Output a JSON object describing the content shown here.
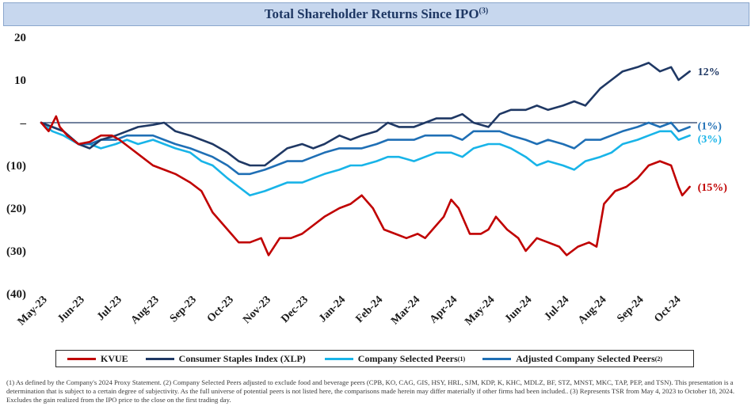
{
  "title": {
    "text": "Total Shareholder Returns Since IPO",
    "sup": "(3)"
  },
  "legend": [
    {
      "label": "KVUE",
      "sup": "",
      "color": "#c00000"
    },
    {
      "label": "Consumer Staples Index (XLP)",
      "sup": "",
      "color": "#1f3864"
    },
    {
      "label": "Company Selected Peers",
      "sup": "(1)",
      "color": "#18b4e8"
    },
    {
      "label": "Adjusted Company Selected Peers",
      "sup": "(2)",
      "color": "#1f6fb5"
    }
  ],
  "footnotes": [
    "(1) As defined by the Company's 2024 Proxy Statement. (2) Company Selected Peers adjusted to exclude food and beverage peers (CPB, KO, CAG, GIS, HSY, HRL, SJM, KDP, K, KHC, MDLZ, BF, STZ, MNST, MKC, TAP, PEP, and TSN). This presentation is a determination that is subject to a certain degree of subjectivity. As the full universe of potential peers is not listed here, the comparisons made herein may differ materially if other firms had been included.. (3) Represents TSR from May 4, 2023 to October 18, 2024. Excludes the gain realized from the IPO price to the close on the first trading day."
  ],
  "chart_data": {
    "type": "line",
    "title": "Total Shareholder Returns Since IPO",
    "xlabel": "",
    "ylabel": "",
    "ylim": [
      -40,
      20
    ],
    "xlim": [
      0,
      17.6
    ],
    "yticks": [
      20,
      10,
      0,
      -10,
      -20,
      -30,
      -40
    ],
    "ytick_labels": [
      "20",
      "10",
      "–",
      "(10)",
      "(20)",
      "(30)",
      "(40)"
    ],
    "zero_line": true,
    "categories": [
      "May-23",
      "Jun-23",
      "Jul-23",
      "Aug-23",
      "Sep-23",
      "Oct-23",
      "Nov-23",
      "Dec-23",
      "Jan-24",
      "Feb-24",
      "Mar-24",
      "Apr-24",
      "May-24",
      "Jun-24",
      "Jul-24",
      "Aug-24",
      "Sep-24",
      "Oct-24"
    ],
    "series": [
      {
        "name": "KVUE",
        "color": "#c00000",
        "end_label": "(15%)",
        "points": [
          [
            0,
            0
          ],
          [
            0.2,
            -2
          ],
          [
            0.4,
            1.5
          ],
          [
            0.5,
            -1
          ],
          [
            0.7,
            -3
          ],
          [
            1,
            -5
          ],
          [
            1.3,
            -4.5
          ],
          [
            1.6,
            -3
          ],
          [
            1.9,
            -3
          ],
          [
            2.1,
            -4
          ],
          [
            2.4,
            -6
          ],
          [
            2.7,
            -8
          ],
          [
            3,
            -10
          ],
          [
            3.3,
            -11
          ],
          [
            3.6,
            -12
          ],
          [
            4,
            -14
          ],
          [
            4.3,
            -16
          ],
          [
            4.6,
            -21
          ],
          [
            5,
            -25
          ],
          [
            5.3,
            -28
          ],
          [
            5.6,
            -28
          ],
          [
            5.9,
            -27
          ],
          [
            6.1,
            -31
          ],
          [
            6.4,
            -27
          ],
          [
            6.7,
            -27
          ],
          [
            7,
            -26
          ],
          [
            7.3,
            -24
          ],
          [
            7.6,
            -22
          ],
          [
            8,
            -20
          ],
          [
            8.3,
            -19
          ],
          [
            8.6,
            -17
          ],
          [
            8.9,
            -20
          ],
          [
            9.2,
            -25
          ],
          [
            9.5,
            -26
          ],
          [
            9.8,
            -27
          ],
          [
            10.1,
            -26
          ],
          [
            10.3,
            -27
          ],
          [
            10.5,
            -25
          ],
          [
            10.8,
            -22
          ],
          [
            11,
            -18
          ],
          [
            11.2,
            -20
          ],
          [
            11.5,
            -26
          ],
          [
            11.8,
            -26
          ],
          [
            12,
            -25
          ],
          [
            12.2,
            -22
          ],
          [
            12.5,
            -25
          ],
          [
            12.8,
            -27
          ],
          [
            13,
            -30
          ],
          [
            13.3,
            -27
          ],
          [
            13.6,
            -28
          ],
          [
            13.9,
            -29
          ],
          [
            14.1,
            -31
          ],
          [
            14.4,
            -29
          ],
          [
            14.7,
            -28
          ],
          [
            14.9,
            -29
          ],
          [
            15.1,
            -19
          ],
          [
            15.4,
            -16
          ],
          [
            15.7,
            -15
          ],
          [
            16,
            -13
          ],
          [
            16.3,
            -10
          ],
          [
            16.6,
            -9
          ],
          [
            16.9,
            -10
          ],
          [
            17.1,
            -15
          ],
          [
            17.2,
            -17
          ],
          [
            17.4,
            -15
          ]
        ]
      },
      {
        "name": "Consumer Staples Index (XLP)",
        "color": "#1f3864",
        "end_label": "12%",
        "points": [
          [
            0,
            0
          ],
          [
            0.3,
            -1
          ],
          [
            0.6,
            -2
          ],
          [
            1,
            -5
          ],
          [
            1.3,
            -6
          ],
          [
            1.6,
            -4
          ],
          [
            2,
            -3
          ],
          [
            2.3,
            -2
          ],
          [
            2.6,
            -1
          ],
          [
            3,
            -0.5
          ],
          [
            3.3,
            0
          ],
          [
            3.6,
            -2
          ],
          [
            4,
            -3
          ],
          [
            4.3,
            -4
          ],
          [
            4.6,
            -5
          ],
          [
            5,
            -7
          ],
          [
            5.3,
            -9
          ],
          [
            5.6,
            -10
          ],
          [
            6,
            -10
          ],
          [
            6.3,
            -8
          ],
          [
            6.6,
            -6
          ],
          [
            7,
            -5
          ],
          [
            7.3,
            -6
          ],
          [
            7.6,
            -5
          ],
          [
            8,
            -3
          ],
          [
            8.3,
            -4
          ],
          [
            8.6,
            -3
          ],
          [
            9,
            -2
          ],
          [
            9.3,
            0
          ],
          [
            9.6,
            -1
          ],
          [
            10,
            -1
          ],
          [
            10.3,
            0
          ],
          [
            10.6,
            1
          ],
          [
            11,
            1
          ],
          [
            11.3,
            2
          ],
          [
            11.6,
            0
          ],
          [
            12,
            -1
          ],
          [
            12.3,
            2
          ],
          [
            12.6,
            3
          ],
          [
            13,
            3
          ],
          [
            13.3,
            4
          ],
          [
            13.6,
            3
          ],
          [
            14,
            4
          ],
          [
            14.3,
            5
          ],
          [
            14.6,
            4
          ],
          [
            15,
            8
          ],
          [
            15.3,
            10
          ],
          [
            15.6,
            12
          ],
          [
            16,
            13
          ],
          [
            16.3,
            14
          ],
          [
            16.6,
            12
          ],
          [
            16.9,
            13
          ],
          [
            17.1,
            10
          ],
          [
            17.4,
            12
          ]
        ]
      },
      {
        "name": "Company Selected Peers",
        "color": "#18b4e8",
        "end_label": "(3%)",
        "points": [
          [
            0,
            0
          ],
          [
            0.3,
            -2
          ],
          [
            0.6,
            -3
          ],
          [
            1,
            -5
          ],
          [
            1.3,
            -5
          ],
          [
            1.6,
            -6
          ],
          [
            2,
            -5
          ],
          [
            2.3,
            -4
          ],
          [
            2.6,
            -5
          ],
          [
            3,
            -4
          ],
          [
            3.3,
            -5
          ],
          [
            3.6,
            -6
          ],
          [
            4,
            -7
          ],
          [
            4.3,
            -9
          ],
          [
            4.6,
            -10
          ],
          [
            5,
            -13
          ],
          [
            5.3,
            -15
          ],
          [
            5.6,
            -17
          ],
          [
            6,
            -16
          ],
          [
            6.3,
            -15
          ],
          [
            6.6,
            -14
          ],
          [
            7,
            -14
          ],
          [
            7.3,
            -13
          ],
          [
            7.6,
            -12
          ],
          [
            8,
            -11
          ],
          [
            8.3,
            -10
          ],
          [
            8.6,
            -10
          ],
          [
            9,
            -9
          ],
          [
            9.3,
            -8
          ],
          [
            9.6,
            -8
          ],
          [
            10,
            -9
          ],
          [
            10.3,
            -8
          ],
          [
            10.6,
            -7
          ],
          [
            11,
            -7
          ],
          [
            11.3,
            -8
          ],
          [
            11.6,
            -6
          ],
          [
            12,
            -5
          ],
          [
            12.3,
            -5
          ],
          [
            12.6,
            -6
          ],
          [
            13,
            -8
          ],
          [
            13.3,
            -10
          ],
          [
            13.6,
            -9
          ],
          [
            14,
            -10
          ],
          [
            14.3,
            -11
          ],
          [
            14.6,
            -9
          ],
          [
            15,
            -8
          ],
          [
            15.3,
            -7
          ],
          [
            15.6,
            -5
          ],
          [
            16,
            -4
          ],
          [
            16.3,
            -3
          ],
          [
            16.6,
            -2
          ],
          [
            16.9,
            -2
          ],
          [
            17.1,
            -4
          ],
          [
            17.4,
            -3
          ]
        ]
      },
      {
        "name": "Adjusted Company Selected Peers",
        "color": "#1f6fb5",
        "end_label": "(1%)",
        "points": [
          [
            0,
            0
          ],
          [
            0.3,
            -1
          ],
          [
            0.6,
            -2
          ],
          [
            1,
            -5
          ],
          [
            1.3,
            -5
          ],
          [
            1.6,
            -4
          ],
          [
            2,
            -4
          ],
          [
            2.3,
            -3
          ],
          [
            2.6,
            -3
          ],
          [
            3,
            -3
          ],
          [
            3.3,
            -4
          ],
          [
            3.6,
            -5
          ],
          [
            4,
            -6
          ],
          [
            4.3,
            -7
          ],
          [
            4.6,
            -8
          ],
          [
            5,
            -10
          ],
          [
            5.3,
            -12
          ],
          [
            5.6,
            -12
          ],
          [
            6,
            -11
          ],
          [
            6.3,
            -10
          ],
          [
            6.6,
            -9
          ],
          [
            7,
            -9
          ],
          [
            7.3,
            -8
          ],
          [
            7.6,
            -7
          ],
          [
            8,
            -6
          ],
          [
            8.3,
            -6
          ],
          [
            8.6,
            -6
          ],
          [
            9,
            -5
          ],
          [
            9.3,
            -4
          ],
          [
            9.6,
            -4
          ],
          [
            10,
            -4
          ],
          [
            10.3,
            -3
          ],
          [
            10.6,
            -3
          ],
          [
            11,
            -3
          ],
          [
            11.3,
            -4
          ],
          [
            11.6,
            -2
          ],
          [
            12,
            -2
          ],
          [
            12.3,
            -2
          ],
          [
            12.6,
            -3
          ],
          [
            13,
            -4
          ],
          [
            13.3,
            -5
          ],
          [
            13.6,
            -4
          ],
          [
            14,
            -5
          ],
          [
            14.3,
            -6
          ],
          [
            14.6,
            -4
          ],
          [
            15,
            -4
          ],
          [
            15.3,
            -3
          ],
          [
            15.6,
            -2
          ],
          [
            16,
            -1
          ],
          [
            16.3,
            0
          ],
          [
            16.6,
            -1
          ],
          [
            16.9,
            0
          ],
          [
            17.1,
            -2
          ],
          [
            17.4,
            -1
          ]
        ]
      }
    ]
  }
}
